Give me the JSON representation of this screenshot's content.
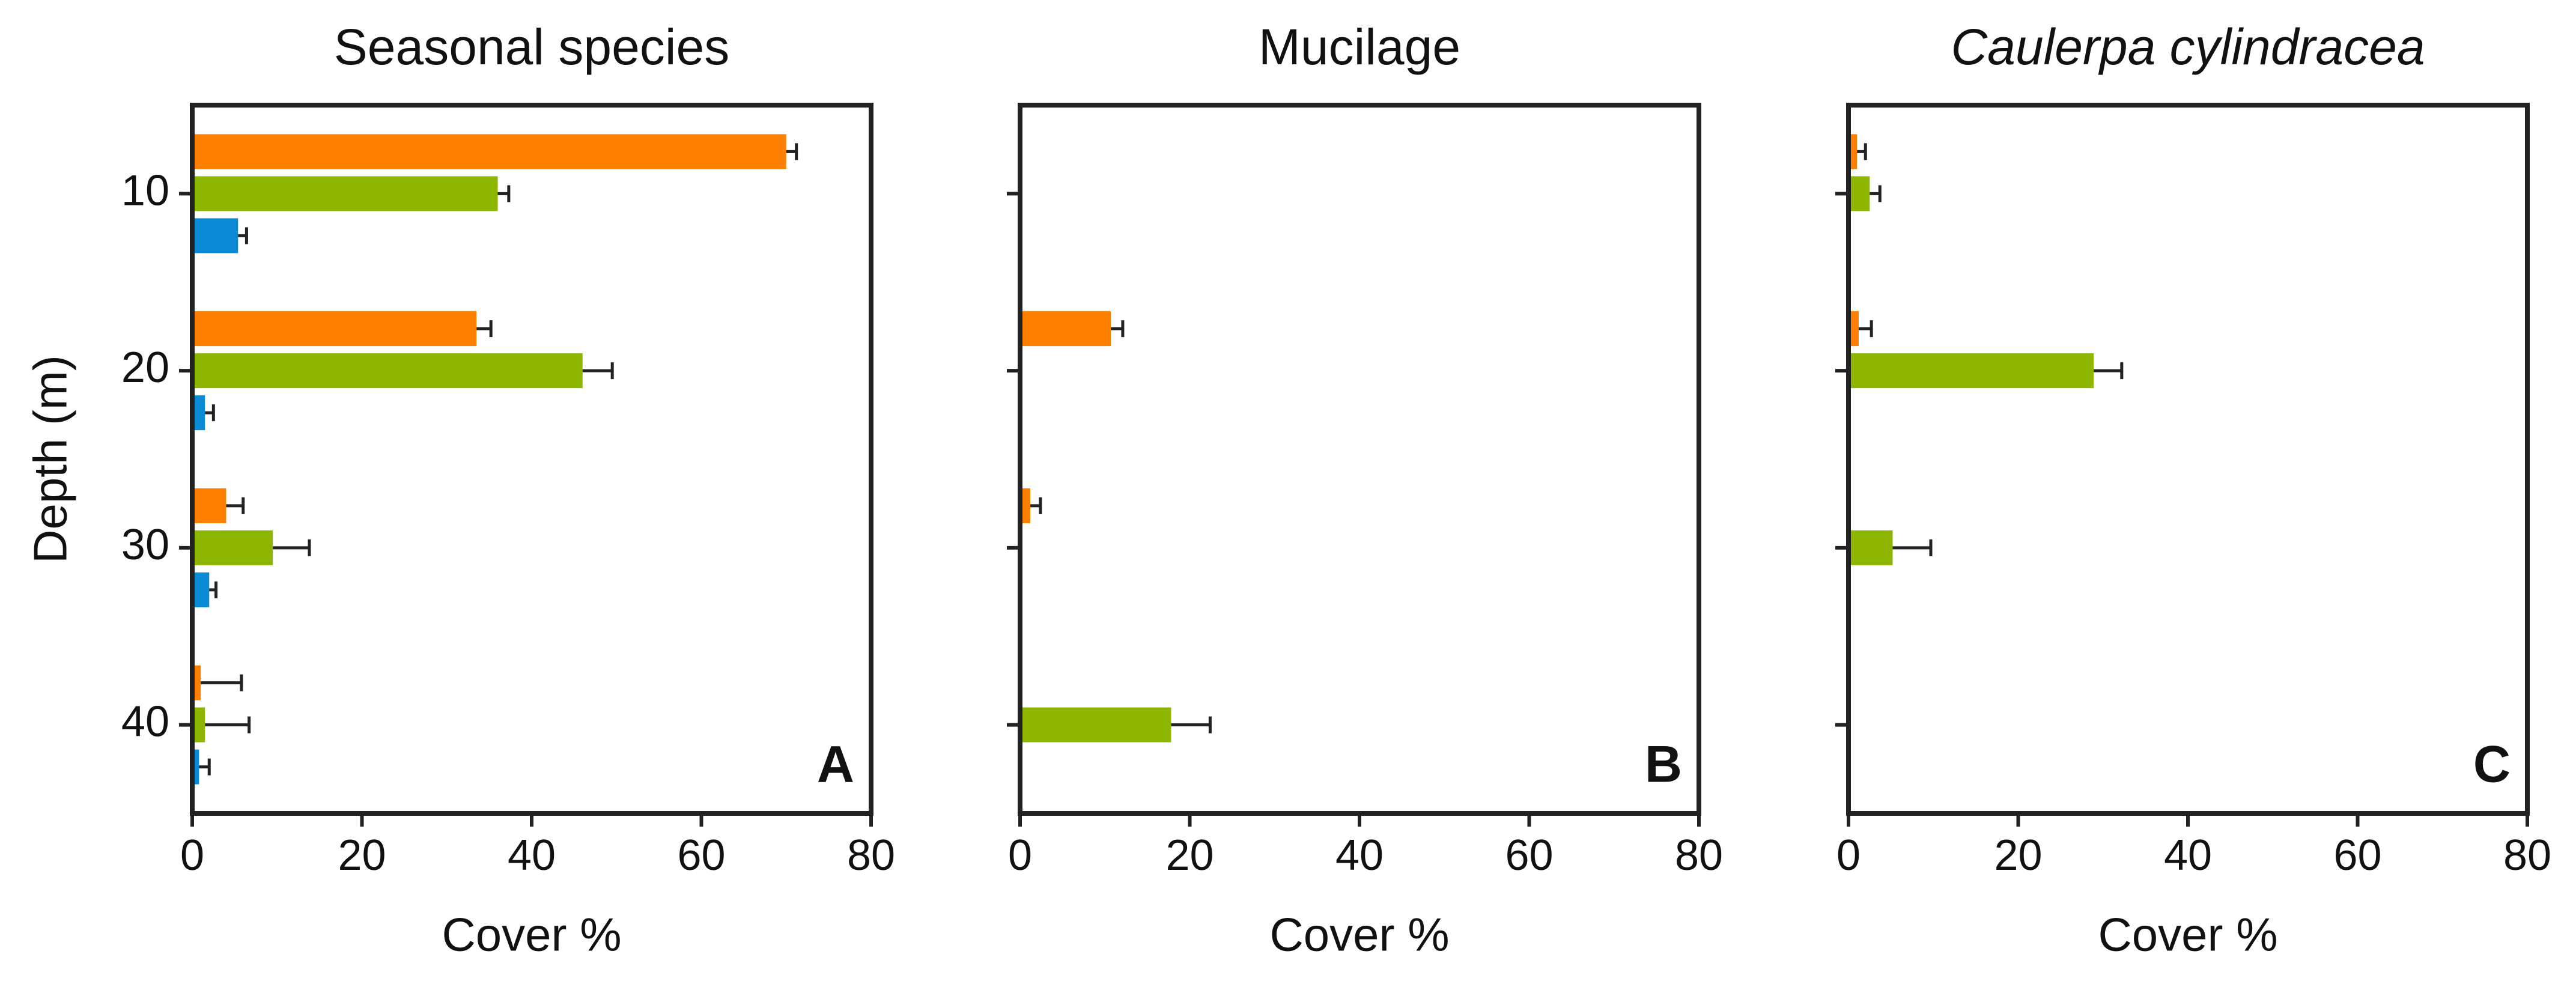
{
  "chart_data": [
    {
      "type": "barh",
      "title": "Seasonal species",
      "xlabel": "Cover %",
      "ylabel": "Depth (m)",
      "annotation": "A",
      "categories": [
        "10",
        "20",
        "30",
        "40"
      ],
      "series": [
        {
          "color": "#ff7f00",
          "values": [
            70,
            33.5,
            4,
            1
          ],
          "errors": [
            1.2,
            1.7,
            2,
            4.8
          ]
        },
        {
          "color": "#8db600",
          "values": [
            36,
            46,
            9.5,
            1.5
          ],
          "errors": [
            1.3,
            3.5,
            4.3,
            5.2
          ]
        },
        {
          "color": "#0a8ad4",
          "values": [
            5.4,
            1.5,
            2,
            0.8
          ],
          "errors": [
            1,
            1,
            0.8,
            1.2
          ]
        }
      ],
      "xlim": [
        0,
        80
      ],
      "xticks": [
        0,
        20,
        40,
        60,
        80
      ]
    },
    {
      "type": "barh",
      "title": "Mucilage",
      "xlabel": "Cover %",
      "annotation": "B",
      "categories": [
        null,
        null,
        null,
        null
      ],
      "series": [
        {
          "color": "#ff7f00",
          "values": [
            null,
            10.7,
            1.2,
            null
          ],
          "errors": [
            null,
            1.4,
            1.2,
            null
          ]
        },
        {
          "color": "#8db600",
          "values": [
            null,
            null,
            null,
            17.8
          ],
          "errors": [
            null,
            null,
            null,
            4.6
          ]
        },
        {
          "color": "#0a8ad4",
          "values": [
            null,
            null,
            null,
            null
          ],
          "errors": [
            null,
            null,
            null,
            null
          ]
        }
      ],
      "xlim": [
        0,
        80
      ],
      "xticks": [
        0,
        20,
        40,
        60,
        80
      ]
    },
    {
      "type": "barh",
      "title": "Caulerpa cylindracea",
      "italic_title": true,
      "xlabel": "Cover %",
      "annotation": "C",
      "categories": [
        null,
        null,
        null,
        null
      ],
      "series": [
        {
          "color": "#ff7f00",
          "values": [
            1,
            1.2,
            null,
            null
          ],
          "errors": [
            1,
            1.5,
            null,
            null
          ]
        },
        {
          "color": "#8db600",
          "values": [
            2.5,
            28.9,
            5.2,
            null
          ],
          "errors": [
            1.2,
            3.3,
            4.5,
            null
          ]
        },
        {
          "color": "#0a8ad4",
          "values": [
            null,
            null,
            null,
            null
          ],
          "errors": [
            null,
            null,
            null,
            null
          ]
        }
      ],
      "xlim": [
        0,
        80
      ],
      "xticks": [
        0,
        20,
        40,
        60,
        80
      ]
    }
  ]
}
